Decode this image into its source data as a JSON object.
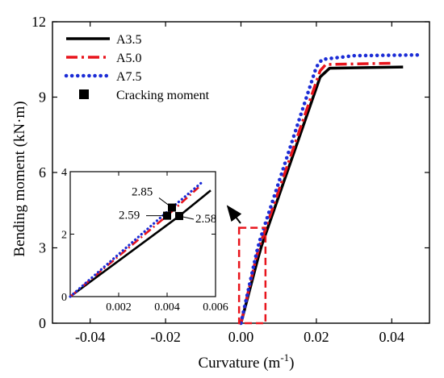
{
  "chart_data": {
    "type": "line",
    "xlabel": "Curvature (m",
    "xlabel_sup": "-1",
    "xlabel_close": ")",
    "ylabel": "Bending moment (kN·m)",
    "xlim": [
      -0.05,
      0.05
    ],
    "ylim": [
      0,
      12
    ],
    "xticks": [
      -0.04,
      -0.02,
      0.0,
      0.02,
      0.04
    ],
    "xtick_labels": [
      "-0.04",
      "-0.02",
      "0.00",
      "0.02",
      "0.04"
    ],
    "yticks": [
      0,
      3,
      6,
      9,
      12
    ],
    "ytick_labels": [
      "0",
      "3",
      "6",
      "9",
      "12"
    ],
    "grid": false,
    "legend_position": "top-left",
    "series": [
      {
        "name": "A3.5",
        "color": "#000000",
        "dash": "solid",
        "points": [
          [
            0,
            0
          ],
          [
            0.0045,
            2.58
          ],
          [
            0.0055,
            3.1
          ],
          [
            0.021,
            9.8
          ],
          [
            0.0235,
            10.15
          ],
          [
            0.043,
            10.2
          ]
        ]
      },
      {
        "name": "A5.0",
        "color": "#e8141c",
        "dash": "dashdot",
        "points": [
          [
            0,
            0
          ],
          [
            0.004,
            2.59
          ],
          [
            0.005,
            3.1
          ],
          [
            0.021,
            10.05
          ],
          [
            0.0225,
            10.3
          ],
          [
            0.04,
            10.35
          ]
        ]
      },
      {
        "name": "A7.5",
        "color": "#1a2bd6",
        "dash": "dot",
        "points": [
          [
            0,
            0
          ],
          [
            0.0042,
            2.85
          ],
          [
            0.005,
            3.3
          ],
          [
            0.02,
            10.2
          ],
          [
            0.0215,
            10.5
          ],
          [
            0.03,
            10.65
          ],
          [
            0.048,
            10.68
          ]
        ]
      }
    ],
    "cracking_moment": {
      "name": "Cracking moment",
      "points": [
        [
          0.0045,
          2.58
        ],
        [
          0.004,
          2.59
        ],
        [
          0.0042,
          2.85
        ]
      ]
    },
    "highlight_box": {
      "xmin": -0.0005,
      "xmax": 0.0065,
      "ymin": 0,
      "ymax": 3.8,
      "color": "#e8141c"
    },
    "inset": {
      "xlim": [
        0,
        0.006
      ],
      "ylim": [
        0,
        4
      ],
      "xticks": [
        0.002,
        0.004,
        0.006
      ],
      "xtick_labels": [
        "0.002",
        "0.004",
        "0.006"
      ],
      "yticks": [
        0,
        2,
        4
      ],
      "ytick_labels": [
        "0",
        "2",
        "4"
      ],
      "series": [
        {
          "name": "A3.5",
          "points": [
            [
              0,
              0
            ],
            [
              0.0045,
              2.58
            ],
            [
              0.0058,
              3.4
            ]
          ]
        },
        {
          "name": "A5.0",
          "points": [
            [
              0,
              0
            ],
            [
              0.004,
              2.59
            ],
            [
              0.0053,
              3.5
            ]
          ]
        },
        {
          "name": "A7.5",
          "points": [
            [
              0,
              0
            ],
            [
              0.0042,
              2.85
            ],
            [
              0.0055,
              3.7
            ]
          ]
        }
      ],
      "annotations": [
        {
          "label": "2.85",
          "x": 0.0042,
          "y": 2.85
        },
        {
          "label": "2.59",
          "x": 0.004,
          "y": 2.59
        },
        {
          "label": "2.58",
          "x": 0.0045,
          "y": 2.58
        }
      ]
    }
  }
}
